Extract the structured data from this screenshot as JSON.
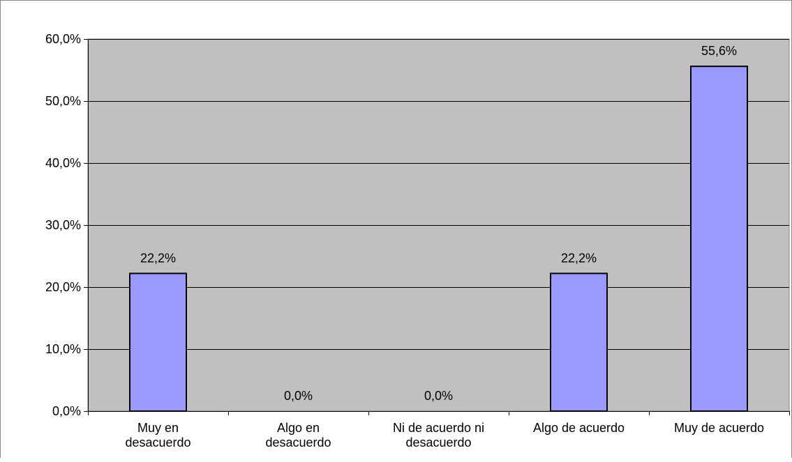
{
  "chart_data": {
    "type": "bar",
    "title": "",
    "xlabel": "",
    "ylabel": "",
    "categories": [
      [
        "Muy en",
        "desacuerdo"
      ],
      [
        "Algo en",
        "desacuerdo"
      ],
      [
        "Ni de acuerdo ni",
        "desacuerdo"
      ],
      [
        "Algo de acuerdo"
      ],
      [
        "Muy de acuerdo"
      ]
    ],
    "values": [
      22.2,
      0.0,
      0.0,
      22.2,
      55.6
    ],
    "data_labels": [
      "22,2%",
      "0,0%",
      "0,0%",
      "22,2%",
      "55,6%"
    ],
    "ylim": [
      0,
      60
    ],
    "yticks": [
      0,
      10,
      20,
      30,
      40,
      50,
      60
    ],
    "ytick_labels": [
      "0,0%",
      "10,0%",
      "20,0%",
      "30,0%",
      "40,0%",
      "50,0%",
      "60,0%"
    ],
    "grid": true,
    "legend": "none",
    "colors": {
      "bar_fill": "#9999FF",
      "bar_stroke": "#000000",
      "plot_background": "#C0C0C0",
      "gridline": "#000000"
    }
  }
}
